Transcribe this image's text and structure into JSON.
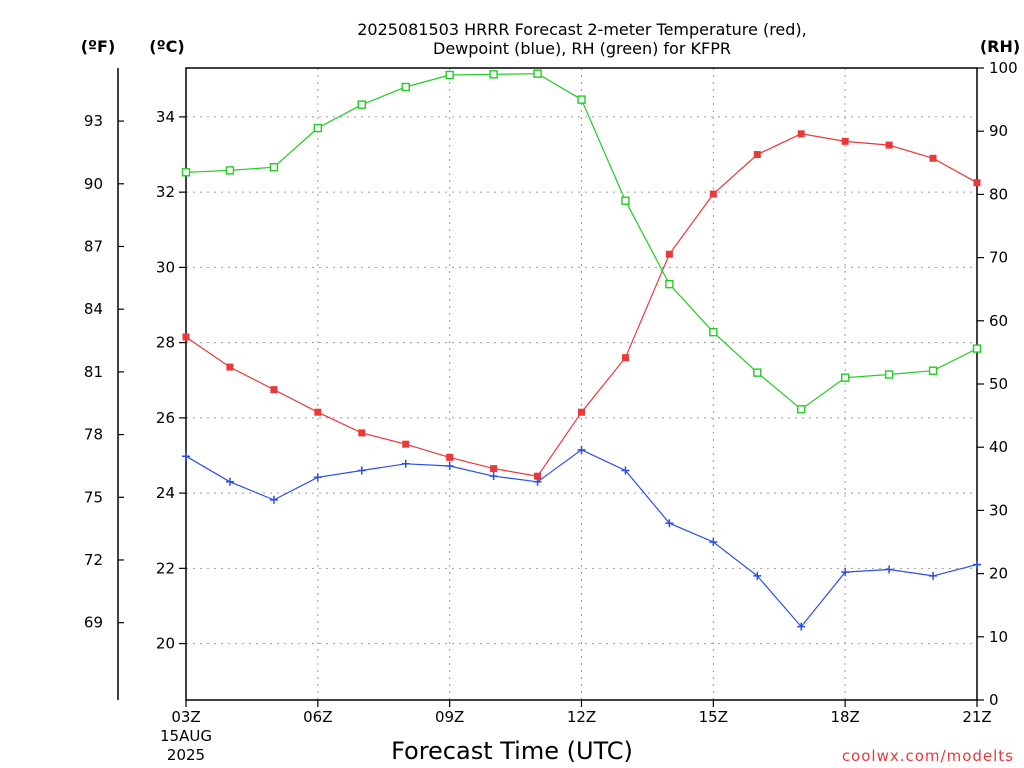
{
  "colors": {
    "temperature": "#e83a3a",
    "dewpoint": "#2a4ee8",
    "rh": "#22cc22",
    "credit": "#e83a3a",
    "grid": "#9a9a9a"
  },
  "chart_data": {
    "type": "line",
    "title_lines": [
      "2025081503 HRRR Forecast 2-meter Temperature (red),",
      "Dewpoint (blue), RH (green) for KFPR"
    ],
    "xlabel": "Forecast Time (UTC)",
    "x_tick_labels": [
      "03Z",
      "06Z",
      "09Z",
      "12Z",
      "15Z",
      "18Z",
      "21Z"
    ],
    "x_tick_hours": [
      3,
      6,
      9,
      12,
      15,
      18,
      21
    ],
    "x_start_date_lines": [
      "15AUG",
      "2025"
    ],
    "xlim": [
      3,
      21
    ],
    "x": [
      3,
      4,
      5,
      6,
      7,
      8,
      9,
      10,
      11,
      12,
      13,
      14,
      15,
      16,
      17,
      18,
      19,
      20,
      21
    ],
    "left_unit_label": "(ºF)",
    "fahrenheit_ticks": [
      "93",
      "90",
      "87",
      "84",
      "81",
      "78",
      "75",
      "72",
      "69"
    ],
    "celsius_unit_label": "(ºC)",
    "celsius_ticks": [
      34,
      32,
      30,
      28,
      26,
      24,
      22,
      20
    ],
    "celsius_lim": [
      18.5,
      35.3
    ],
    "right_unit_label": "(RH)",
    "rh_ticks": [
      0,
      10,
      20,
      30,
      40,
      50,
      60,
      70,
      80,
      90,
      100
    ],
    "rh_lim": [
      0,
      100
    ],
    "grid": true,
    "series": [
      {
        "key": "temperature",
        "axis": "celsius",
        "marker": "filled-square",
        "values": [
          28.15,
          27.35,
          26.75,
          26.15,
          25.6,
          25.3,
          24.95,
          24.65,
          24.45,
          26.15,
          27.6,
          30.35,
          31.95,
          33.0,
          33.55,
          33.35,
          33.25,
          32.9,
          32.25
        ]
      },
      {
        "key": "dewpoint",
        "axis": "celsius",
        "marker": "plus",
        "values": [
          24.98,
          24.3,
          23.82,
          24.42,
          24.6,
          24.78,
          24.72,
          24.45,
          24.3,
          25.15,
          24.6,
          23.2,
          22.7,
          21.8,
          20.45,
          21.9,
          21.97,
          21.8,
          22.1
        ]
      },
      {
        "key": "rh",
        "axis": "rh",
        "marker": "open-square",
        "values": [
          83.5,
          83.8,
          84.3,
          90.5,
          94.2,
          97.0,
          98.9,
          99.0,
          99.1,
          95.0,
          79.0,
          65.8,
          58.2,
          51.8,
          46.0,
          51.0,
          51.5,
          52.1,
          55.6
        ]
      }
    ]
  },
  "credit": "coolwx.com/modelts"
}
